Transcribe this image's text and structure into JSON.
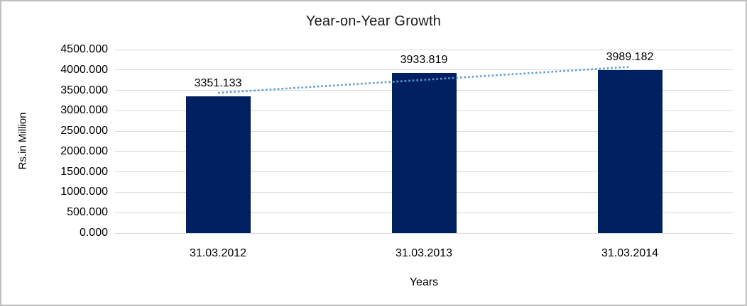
{
  "chart_data": {
    "type": "bar",
    "title": "Year-on-Year Growth",
    "categories": [
      "31.03.2012",
      "31.03.2013",
      "31.03.2014"
    ],
    "values": [
      3351.133,
      3933.819,
      3989.182
    ],
    "data_labels": [
      "3351.133",
      "3933.819",
      "3989.182"
    ],
    "xlabel": "Years",
    "ylabel": "Rs.in Million",
    "ylim": [
      0,
      4500
    ],
    "ytick_interval": 500,
    "ytick_labels": [
      "0.000",
      "500.000",
      "1000.000",
      "1500.000",
      "2000.000",
      "2500.000",
      "3000.000",
      "3500.000",
      "4000.000",
      "4500.000"
    ],
    "grid": true,
    "legend": "none",
    "trendline": {
      "type": "linear",
      "style": "dotted",
      "fit_values": [
        3439.02,
        3758.045,
        4077.07
      ]
    },
    "colors": {
      "bar_fill": "#002060",
      "trendline": "#5B9BD5",
      "gridline": "#D9D9D9",
      "chart_border": "#BFBFBF",
      "background": "#FFFFFF",
      "text": "#000000"
    }
  }
}
